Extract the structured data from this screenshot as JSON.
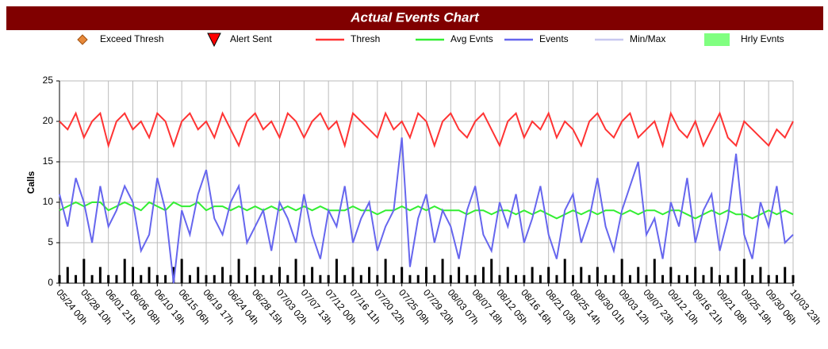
{
  "chart_data": {
    "type": "line",
    "title": "Actual Events Chart",
    "y_label": "Calls",
    "ylim": [
      0,
      25
    ],
    "yticks": [
      0,
      5,
      10,
      15,
      20,
      25
    ],
    "grid": true,
    "legend_only": [
      {
        "name": "Exceed Thresh",
        "color": "#e8893a",
        "symbol": "diamond"
      },
      {
        "name": "Alert Sent",
        "color": "#ff0000",
        "symbol": "triangle"
      },
      {
        "name": "Min/Max",
        "color": "#c8c8f0",
        "symbol": "line"
      }
    ],
    "categories": [
      "05/24 00h",
      null,
      null,
      "05/28 10h",
      null,
      null,
      "06/01 21h",
      null,
      null,
      "06/06 08h",
      null,
      null,
      "06/10 19h",
      null,
      null,
      "06/15 06h",
      null,
      null,
      "06/19 17h",
      null,
      null,
      "06/24 04h",
      null,
      null,
      "06/28 15h",
      null,
      null,
      "07/03 02h",
      null,
      null,
      "07/07 13h",
      null,
      null,
      "07/12 00h",
      null,
      null,
      "07/16 11h",
      null,
      null,
      "07/20 22h",
      null,
      null,
      "07/25 09h",
      null,
      null,
      "07/29 20h",
      null,
      null,
      "08/03 07h",
      null,
      null,
      "08/07 18h",
      null,
      null,
      "08/12 05h",
      null,
      null,
      "08/16 16h",
      null,
      null,
      "08/21 03h",
      null,
      null,
      "08/25 14h",
      null,
      null,
      "08/30 01h",
      null,
      null,
      "09/03 12h",
      null,
      null,
      "09/07 23h",
      null,
      null,
      "09/12 10h",
      null,
      null,
      "09/16 21h",
      null,
      null,
      "09/21 08h",
      null,
      null,
      "09/25 19h",
      null,
      null,
      "09/30 06h",
      null,
      null,
      "10/03 23h"
    ],
    "series": [
      {
        "name": "Hrly Evnts",
        "kind": "bar",
        "color": "#000000",
        "legend_color": "#80ff80",
        "values": [
          1,
          2,
          1,
          3,
          1,
          2,
          1,
          1,
          3,
          2,
          1,
          2,
          1,
          1,
          2,
          3,
          1,
          2,
          1,
          1,
          2,
          1,
          3,
          1,
          2,
          1,
          1,
          2,
          1,
          3,
          1,
          2,
          1,
          1,
          3,
          1,
          2,
          1,
          2,
          1,
          3,
          1,
          2,
          1,
          1,
          2,
          1,
          3,
          1,
          2,
          1,
          1,
          2,
          3,
          1,
          2,
          1,
          1,
          2,
          1,
          2,
          1,
          3,
          1,
          2,
          1,
          2,
          1,
          1,
          3,
          1,
          2,
          1,
          3,
          1,
          2,
          1,
          1,
          2,
          1,
          2,
          1,
          1,
          2,
          3,
          1,
          2,
          1,
          1,
          2,
          1
        ]
      },
      {
        "name": "Thresh",
        "kind": "line",
        "color": "#ff3333",
        "values": [
          20,
          19,
          21,
          18,
          20,
          21,
          17,
          20,
          21,
          19,
          20,
          18,
          21,
          20,
          17,
          20,
          21,
          19,
          20,
          18,
          21,
          19,
          17,
          20,
          21,
          19,
          20,
          18,
          21,
          20,
          18,
          20,
          21,
          19,
          20,
          17,
          21,
          20,
          19,
          18,
          21,
          19,
          20,
          18,
          21,
          20,
          17,
          20,
          21,
          19,
          18,
          20,
          21,
          19,
          17,
          20,
          21,
          18,
          20,
          19,
          21,
          18,
          20,
          19,
          17,
          20,
          21,
          19,
          18,
          20,
          21,
          18,
          19,
          20,
          17,
          21,
          19,
          18,
          20,
          17,
          19,
          21,
          18,
          17,
          20,
          19,
          18,
          17,
          19,
          18,
          20
        ]
      },
      {
        "name": "Avg Evnts",
        "kind": "line",
        "color": "#33ee33",
        "values": [
          9,
          9.5,
          10,
          9.5,
          10,
          10,
          9,
          9.5,
          10,
          9.5,
          9,
          10,
          9.5,
          9,
          10,
          9.5,
          9.5,
          10,
          9,
          9.5,
          9.5,
          9,
          9.5,
          9,
          9.5,
          9,
          9.5,
          9,
          9.5,
          9,
          9.5,
          9,
          9.5,
          9,
          9,
          9,
          9.5,
          9,
          9,
          8.5,
          9,
          9,
          9.5,
          9,
          9.5,
          9,
          9.5,
          9,
          9,
          9,
          8.5,
          9,
          9,
          8.5,
          9,
          9,
          8.5,
          9,
          8.5,
          9,
          8.5,
          8,
          8.5,
          9,
          8.5,
          9,
          8.5,
          9,
          9,
          8.5,
          9,
          8.5,
          9,
          9,
          8.5,
          9,
          9,
          8.5,
          8,
          8.5,
          9,
          8.5,
          9,
          8.5,
          8.5,
          8,
          8.5,
          9,
          8.5,
          9,
          8.5
        ]
      },
      {
        "name": "Events",
        "kind": "line",
        "color": "#6666ee",
        "values": [
          11,
          7,
          13,
          10,
          5,
          12,
          7,
          9,
          12,
          10,
          4,
          6,
          13,
          9,
          0,
          9,
          6,
          11,
          14,
          8,
          6,
          10,
          12,
          5,
          7,
          9,
          4,
          10,
          8,
          5,
          11,
          6,
          3,
          9,
          7,
          12,
          5,
          8,
          10,
          4,
          7,
          9,
          18,
          2,
          8,
          11,
          5,
          9,
          7,
          3,
          9,
          12,
          6,
          4,
          10,
          7,
          11,
          5,
          8,
          12,
          6,
          3,
          9,
          11,
          5,
          8,
          13,
          7,
          4,
          9,
          12,
          15,
          6,
          8,
          3,
          10,
          7,
          13,
          5,
          9,
          11,
          4,
          8,
          16,
          6,
          3,
          10,
          7,
          12,
          5,
          6
        ]
      }
    ]
  }
}
